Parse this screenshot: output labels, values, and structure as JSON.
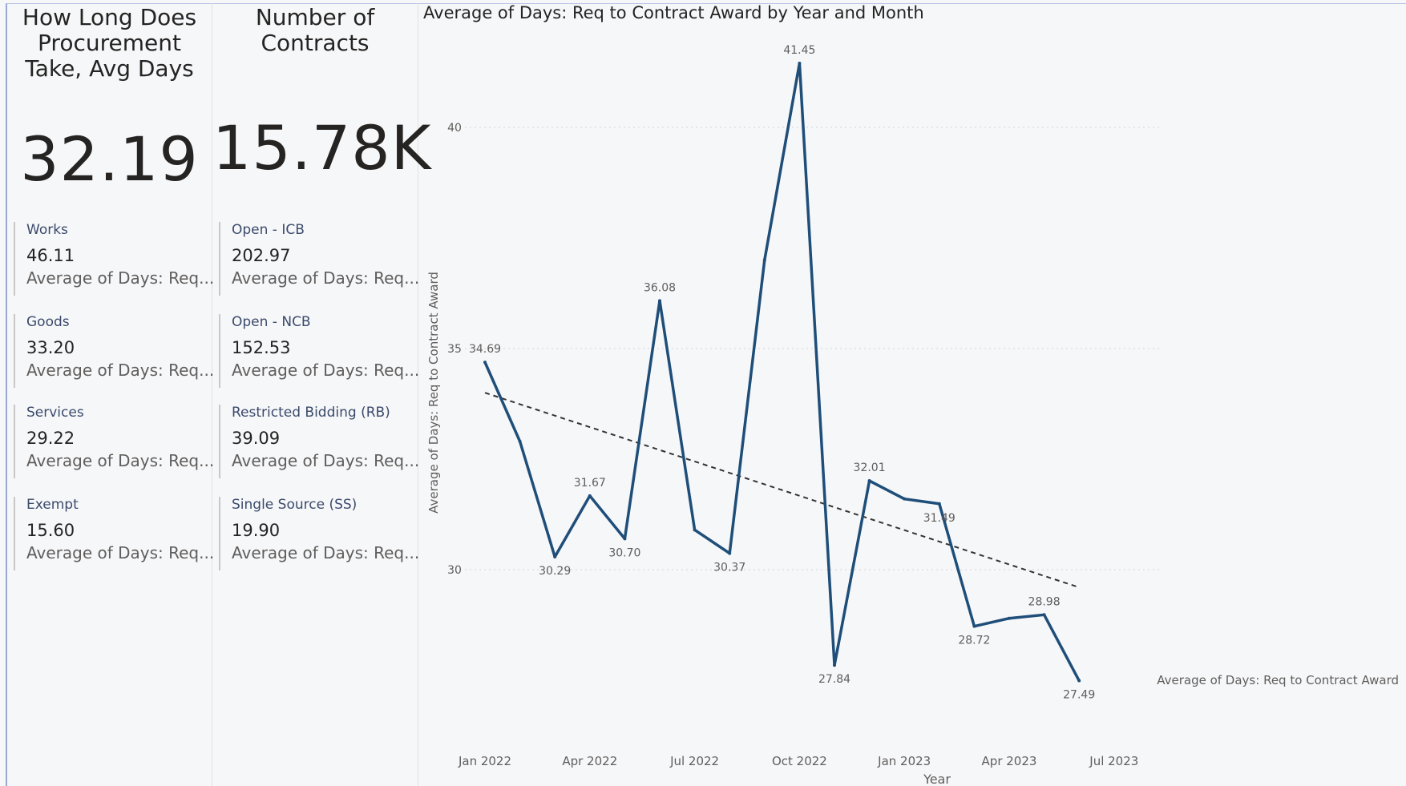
{
  "kpis": {
    "procurement": {
      "title_lines": [
        "How Long Does",
        "Procurement",
        "Take, Avg Days"
      ],
      "value": "32.19",
      "cards": [
        {
          "label": "Works",
          "value": "46.11",
          "sub": "Average of Days: Req..."
        },
        {
          "label": "Goods",
          "value": "33.20",
          "sub": "Average of Days: Req..."
        },
        {
          "label": "Services",
          "value": "29.22",
          "sub": "Average of Days: Req..."
        },
        {
          "label": "Exempt",
          "value": "15.60",
          "sub": "Average of Days: Req..."
        }
      ]
    },
    "contracts": {
      "title_lines": [
        "Number of",
        "Contracts"
      ],
      "value": "15.78K",
      "cards": [
        {
          "label": "Open - ICB",
          "value": "202.97",
          "sub": "Average of Days: Req..."
        },
        {
          "label": "Open - NCB",
          "value": "152.53",
          "sub": "Average of Days: Req..."
        },
        {
          "label": "Restricted Bidding (RB)",
          "value": "39.09",
          "sub": "Average of Days: Req..."
        },
        {
          "label": "Single Source (SS)",
          "value": "19.90",
          "sub": "Average of Days: Req..."
        }
      ]
    }
  },
  "chart_data": {
    "type": "line",
    "title": "Average of Days: Req to Contract Award by Year and Month",
    "xlabel": "Year",
    "ylabel": "Average of Days: Req to Contract Award",
    "legend_label": "Average of Days: Req to Contract Award",
    "legend_position": "right",
    "x_ticks": [
      "Jan 2022",
      "Apr 2022",
      "Jul 2022",
      "Oct 2022",
      "Jan 2023",
      "Apr 2023",
      "Jul 2023"
    ],
    "y_ticks": [
      30,
      35,
      40
    ],
    "grid": true,
    "x": [
      "2022-01",
      "2022-02",
      "2022-03",
      "2022-04",
      "2022-05",
      "2022-06",
      "2022-07",
      "2022-08",
      "2022-09",
      "2022-10",
      "2022-11",
      "2022-12",
      "2023-01",
      "2023-02",
      "2023-03",
      "2023-04",
      "2023-05",
      "2023-06"
    ],
    "series": [
      {
        "values": [
          34.69,
          32.9,
          30.29,
          31.67,
          30.7,
          36.08,
          30.9,
          30.37,
          37.0,
          41.45,
          27.84,
          32.01,
          31.6,
          31.49,
          28.72,
          28.9,
          28.98,
          27.49
        ],
        "data_labels": [
          "34.69",
          "",
          "30.29",
          "31.67",
          "30.70",
          "36.08",
          "",
          "30.37",
          "",
          "41.45",
          "27.84",
          "32.01",
          "",
          "31.49",
          "28.72",
          "",
          "28.98",
          "27.49"
        ],
        "color": "#1f4e79"
      }
    ],
    "trendline": {
      "start": 34.0,
      "end": 29.6,
      "style": "dashed",
      "color": "#333333"
    }
  }
}
